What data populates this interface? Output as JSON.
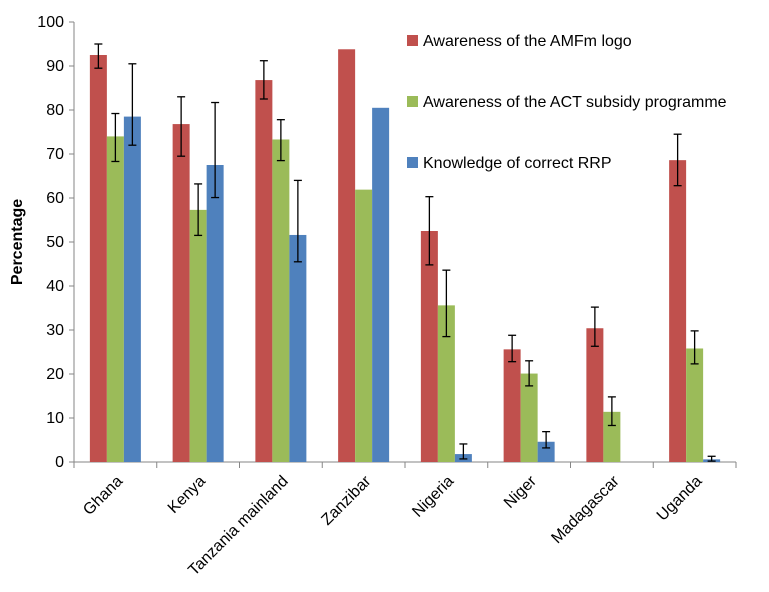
{
  "chart_data": {
    "type": "bar",
    "ylabel": "Percentage",
    "ylim": [
      0,
      100
    ],
    "yticks": [
      "0",
      "10",
      "20",
      "30",
      "40",
      "50",
      "60",
      "70",
      "80",
      "90",
      "100"
    ],
    "categories": [
      "Ghana",
      "Kenya",
      "Tanzania mainland",
      "Zanzibar",
      "Nigeria",
      "Niger",
      "Madagascar",
      "Uganda"
    ],
    "legend_position": "top-right",
    "series": [
      {
        "name": "Awareness of the AMFm logo",
        "color": "#c0504d",
        "values": [
          92.5,
          76.8,
          86.8,
          93.8,
          52.5,
          25.6,
          30.4,
          68.6
        ],
        "error_low": [
          89.5,
          69.5,
          82.5,
          null,
          44.8,
          22.8,
          26.3,
          62.8
        ],
        "error_high": [
          95.0,
          83.0,
          91.2,
          null,
          60.3,
          28.8,
          35.2,
          74.5
        ]
      },
      {
        "name": "Awareness of the ACT subsidy programme",
        "color": "#9bbb59",
        "values": [
          74.0,
          57.3,
          73.3,
          61.9,
          35.6,
          20.1,
          11.4,
          25.8
        ],
        "error_low": [
          68.3,
          51.5,
          68.5,
          null,
          28.5,
          17.3,
          8.3,
          22.3
        ],
        "error_high": [
          79.2,
          63.2,
          77.8,
          null,
          43.6,
          23.0,
          14.8,
          29.8
        ]
      },
      {
        "name": "Knowledge of correct RRP",
        "color": "#4f81bd",
        "values": [
          78.5,
          67.5,
          51.6,
          80.5,
          1.8,
          4.6,
          null,
          0.6
        ],
        "error_low": [
          72.0,
          60.1,
          45.5,
          null,
          0.7,
          3.2,
          null,
          0.2
        ],
        "error_high": [
          90.5,
          81.7,
          64.0,
          null,
          4.1,
          6.9,
          null,
          1.3
        ]
      }
    ]
  }
}
